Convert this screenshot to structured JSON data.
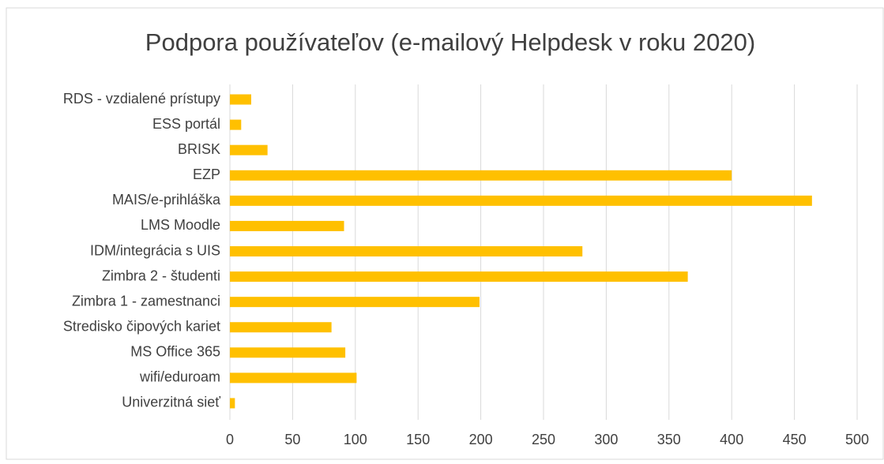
{
  "chart_data": {
    "type": "bar",
    "orientation": "horizontal",
    "title": "Podpora používateľov (e-mailový Helpdesk v roku 2020)",
    "categories": [
      "RDS - vzdialené prístupy",
      "ESS portál",
      "BRISK",
      "EZP",
      "MAIS/e-prihláška",
      "LMS Moodle",
      "IDM/integrácia s UIS",
      "Zimbra 2 - študenti",
      "Zimbra 1 - zamestnanci",
      "Stredisko čipových kariet",
      "MS Office 365",
      "wifi/eduroam",
      "Univerzitná sieť"
    ],
    "values": [
      17,
      9,
      30,
      400,
      464,
      91,
      281,
      365,
      199,
      81,
      92,
      101,
      4
    ],
    "color": "#ffc000",
    "xlim": [
      0,
      500
    ],
    "xticks": [
      0,
      50,
      100,
      150,
      200,
      250,
      300,
      350,
      400,
      450,
      500
    ],
    "grid": true
  }
}
